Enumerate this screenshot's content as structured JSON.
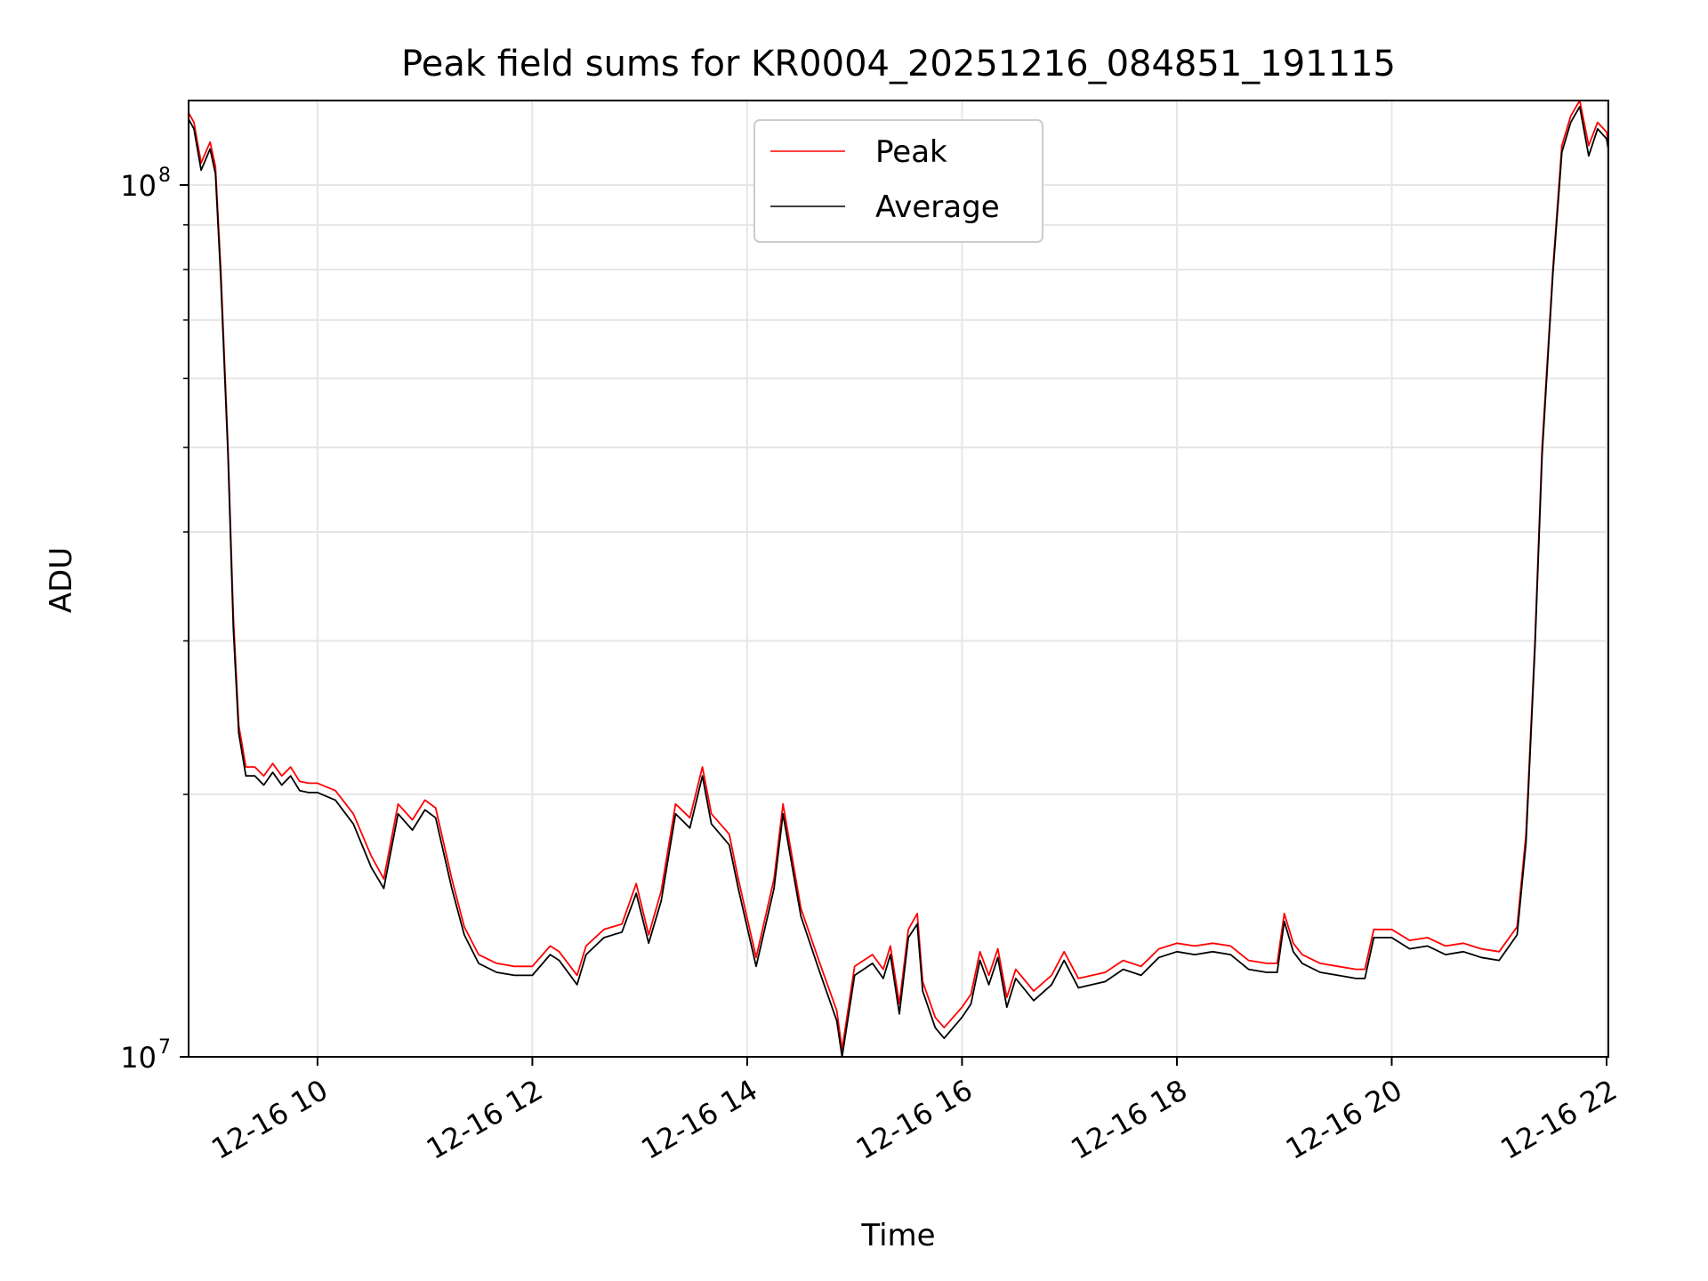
{
  "chart_data": {
    "type": "line",
    "title": "Peak field sums for KR0004_20251216_084851_191115",
    "xlabel": "Time",
    "ylabel": "ADU",
    "x_scale": "time",
    "y_scale": "log",
    "xlim": [
      "2025-12-16 08:48",
      "2025-12-16 22:01"
    ],
    "ylim": [
      10000000,
      125000000
    ],
    "x_ticks": [
      {
        "value": "2025-12-16 10:00",
        "label": "12-16 10"
      },
      {
        "value": "2025-12-16 12:00",
        "label": "12-16 12"
      },
      {
        "value": "2025-12-16 14:00",
        "label": "12-16 14"
      },
      {
        "value": "2025-12-16 16:00",
        "label": "12-16 16"
      },
      {
        "value": "2025-12-16 18:00",
        "label": "12-16 18"
      },
      {
        "value": "2025-12-16 20:00",
        "label": "12-16 20"
      },
      {
        "value": "2025-12-16 22:00",
        "label": "12-16 22"
      }
    ],
    "y_major_ticks": [
      {
        "value": 10000000,
        "label_base": "10",
        "label_exp": "7"
      },
      {
        "value": 100000000,
        "label_base": "10",
        "label_exp": "8"
      }
    ],
    "y_minor_ticks": [
      20000000,
      30000000,
      40000000,
      50000000,
      60000000,
      70000000,
      80000000,
      90000000
    ],
    "grid": true,
    "legend_position": "top-center",
    "x": [
      "2025-12-16 08:48",
      "2025-12-16 08:51",
      "2025-12-16 08:55",
      "2025-12-16 09:00",
      "2025-12-16 09:03",
      "2025-12-16 09:06",
      "2025-12-16 09:10",
      "2025-12-16 09:13",
      "2025-12-16 09:16",
      "2025-12-16 09:20",
      "2025-12-16 09:25",
      "2025-12-16 09:30",
      "2025-12-16 09:35",
      "2025-12-16 09:40",
      "2025-12-16 09:45",
      "2025-12-16 09:50",
      "2025-12-16 09:55",
      "2025-12-16 10:00",
      "2025-12-16 10:10",
      "2025-12-16 10:20",
      "2025-12-16 10:30",
      "2025-12-16 10:37",
      "2025-12-16 10:45",
      "2025-12-16 10:53",
      "2025-12-16 11:00",
      "2025-12-16 11:06",
      "2025-12-16 11:15",
      "2025-12-16 11:22",
      "2025-12-16 11:30",
      "2025-12-16 11:40",
      "2025-12-16 11:50",
      "2025-12-16 12:00",
      "2025-12-16 12:10",
      "2025-12-16 12:15",
      "2025-12-16 12:25",
      "2025-12-16 12:30",
      "2025-12-16 12:40",
      "2025-12-16 12:50",
      "2025-12-16 12:58",
      "2025-12-16 13:05",
      "2025-12-16 13:12",
      "2025-12-16 13:20",
      "2025-12-16 13:28",
      "2025-12-16 13:35",
      "2025-12-16 13:40",
      "2025-12-16 13:50",
      "2025-12-16 13:55",
      "2025-12-16 14:05",
      "2025-12-16 14:15",
      "2025-12-16 14:20",
      "2025-12-16 14:25",
      "2025-12-16 14:30",
      "2025-12-16 14:40",
      "2025-12-16 14:50",
      "2025-12-16 14:53",
      "2025-12-16 15:00",
      "2025-12-16 15:05",
      "2025-12-16 15:10",
      "2025-12-16 15:16",
      "2025-12-16 15:20",
      "2025-12-16 15:25",
      "2025-12-16 15:30",
      "2025-12-16 15:35",
      "2025-12-16 15:38",
      "2025-12-16 15:45",
      "2025-12-16 15:50",
      "2025-12-16 16:00",
      "2025-12-16 16:05",
      "2025-12-16 16:10",
      "2025-12-16 16:15",
      "2025-12-16 16:20",
      "2025-12-16 16:25",
      "2025-12-16 16:30",
      "2025-12-16 16:40",
      "2025-12-16 16:50",
      "2025-12-16 16:57",
      "2025-12-16 17:05",
      "2025-12-16 17:20",
      "2025-12-16 17:30",
      "2025-12-16 17:40",
      "2025-12-16 17:50",
      "2025-12-16 18:00",
      "2025-12-16 18:10",
      "2025-12-16 18:20",
      "2025-12-16 18:30",
      "2025-12-16 18:40",
      "2025-12-16 18:50",
      "2025-12-16 18:56",
      "2025-12-16 19:00",
      "2025-12-16 19:05",
      "2025-12-16 19:10",
      "2025-12-16 19:20",
      "2025-12-16 19:30",
      "2025-12-16 19:40",
      "2025-12-16 19:45",
      "2025-12-16 19:50",
      "2025-12-16 20:00",
      "2025-12-16 20:10",
      "2025-12-16 20:20",
      "2025-12-16 20:30",
      "2025-12-16 20:40",
      "2025-12-16 20:50",
      "2025-12-16 21:00",
      "2025-12-16 21:10",
      "2025-12-16 21:15",
      "2025-12-16 21:20",
      "2025-12-16 21:24",
      "2025-12-16 21:30",
      "2025-12-16 21:35",
      "2025-12-16 21:40",
      "2025-12-16 21:45",
      "2025-12-16 21:50",
      "2025-12-16 21:55",
      "2025-12-16 22:00",
      "2025-12-16 22:01"
    ],
    "series": [
      {
        "name": "Peak",
        "color": "#ff0000",
        "values": [
          121000000,
          118000000,
          106000000,
          112000000,
          105000000,
          80000000,
          50000000,
          32000000,
          24000000,
          21500000,
          21500000,
          21000000,
          21700000,
          21000000,
          21500000,
          20700000,
          20600000,
          20600000,
          20200000,
          19000000,
          17000000,
          16000000,
          19500000,
          18700000,
          19700000,
          19300000,
          16000000,
          14100000,
          13100000,
          12800000,
          12700000,
          12700000,
          13400000,
          13200000,
          12400000,
          13400000,
          14000000,
          14200000,
          15800000,
          13800000,
          15500000,
          19500000,
          18800000,
          21500000,
          19000000,
          18000000,
          16000000,
          13000000,
          16000000,
          19500000,
          17000000,
          14800000,
          12900000,
          11300000,
          10200000,
          12700000,
          12900000,
          13100000,
          12600000,
          13400000,
          11500000,
          14000000,
          14600000,
          12200000,
          11100000,
          10800000,
          11400000,
          11800000,
          13200000,
          12400000,
          13300000,
          11700000,
          12600000,
          11900000,
          12400000,
          13200000,
          12300000,
          12500000,
          12900000,
          12700000,
          13300000,
          13500000,
          13400000,
          13500000,
          13400000,
          12900000,
          12800000,
          12800000,
          14600000,
          13500000,
          13100000,
          12800000,
          12700000,
          12600000,
          12600000,
          14000000,
          14000000,
          13600000,
          13700000,
          13400000,
          13500000,
          13300000,
          13200000,
          14100000,
          18000000,
          30000000,
          50000000,
          80000000,
          111000000,
          120000000,
          125000000,
          111000000,
          118000000,
          115000000,
          112000000
        ]
      },
      {
        "name": "Average",
        "color": "#000000",
        "values": [
          119000000,
          116000000,
          104000000,
          110000000,
          103000000,
          78000000,
          49000000,
          31000000,
          23500000,
          21000000,
          21000000,
          20500000,
          21200000,
          20500000,
          21000000,
          20200000,
          20100000,
          20100000,
          19700000,
          18500000,
          16500000,
          15600000,
          19000000,
          18200000,
          19200000,
          18800000,
          15600000,
          13800000,
          12800000,
          12500000,
          12400000,
          12400000,
          13100000,
          12900000,
          12100000,
          13100000,
          13700000,
          13900000,
          15400000,
          13500000,
          15100000,
          19000000,
          18300000,
          21000000,
          18500000,
          17500000,
          15600000,
          12700000,
          15600000,
          19000000,
          16600000,
          14500000,
          12600000,
          11000000,
          10000000,
          12400000,
          12600000,
          12800000,
          12300000,
          13100000,
          11200000,
          13700000,
          14200000,
          11900000,
          10800000,
          10500000,
          11100000,
          11500000,
          12900000,
          12100000,
          13000000,
          11400000,
          12300000,
          11600000,
          12100000,
          12900000,
          12000000,
          12200000,
          12600000,
          12400000,
          13000000,
          13200000,
          13100000,
          13200000,
          13100000,
          12600000,
          12500000,
          12500000,
          14300000,
          13200000,
          12800000,
          12500000,
          12400000,
          12300000,
          12300000,
          13700000,
          13700000,
          13300000,
          13400000,
          13100000,
          13200000,
          13000000,
          12900000,
          13800000,
          17600000,
          29500000,
          49000000,
          79000000,
          109000000,
          118000000,
          123000000,
          108000000,
          116000000,
          113000000,
          110000000
        ]
      }
    ]
  }
}
